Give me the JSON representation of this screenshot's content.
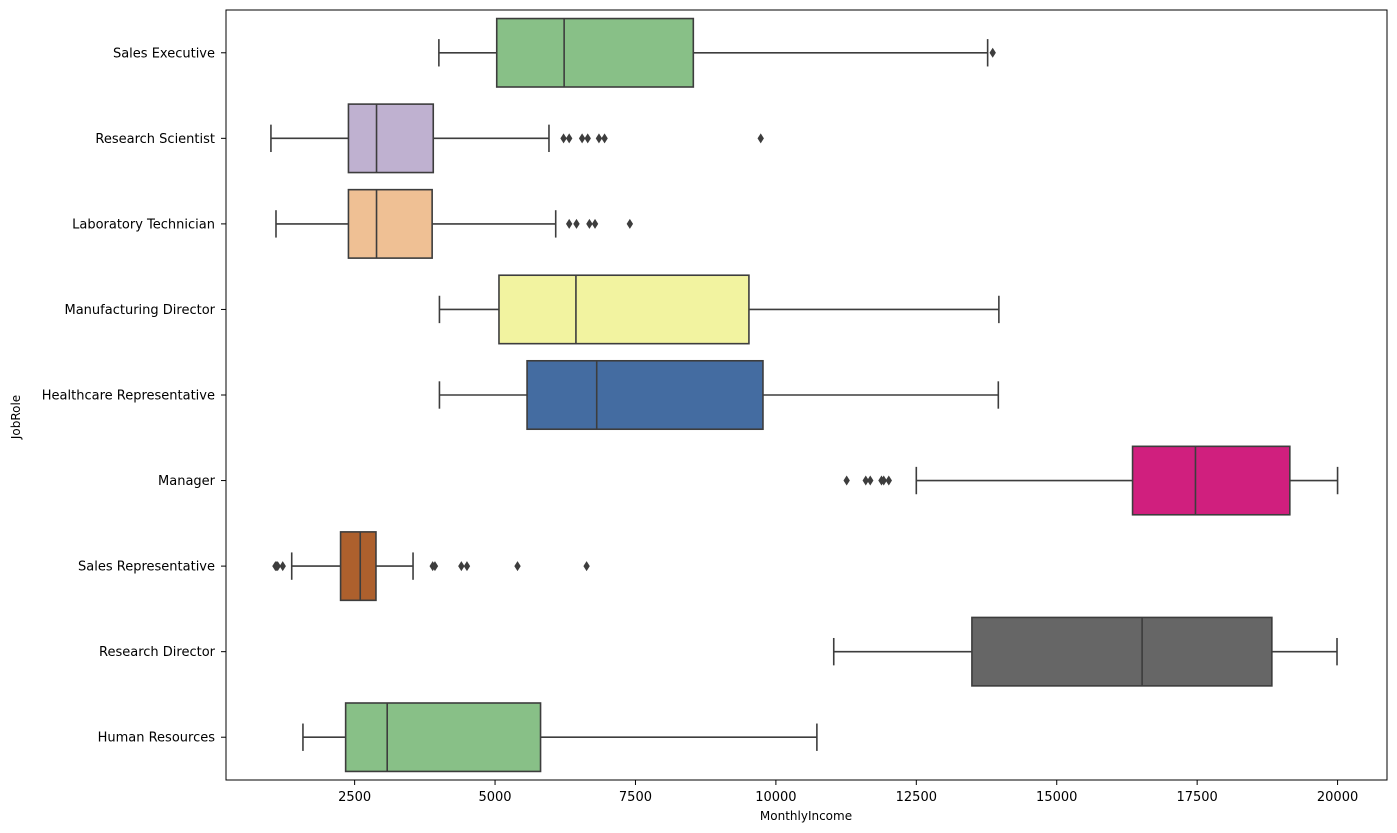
{
  "chart_data": {
    "type": "box",
    "orientation": "horizontal",
    "title": "",
    "xlabel": "MonthlyIncome",
    "ylabel": "JobRole",
    "xlim": [
      210,
      20880
    ],
    "xticks": [
      {
        "value": 2500,
        "label": "2500"
      },
      {
        "value": 5000,
        "label": "5000"
      },
      {
        "value": 7500,
        "label": "7500"
      },
      {
        "value": 10000,
        "label": "10000"
      },
      {
        "value": 12500,
        "label": "12500"
      },
      {
        "value": 15000,
        "label": "15000"
      },
      {
        "value": 17500,
        "label": "17500"
      },
      {
        "value": 20000,
        "label": "20000"
      }
    ],
    "categories": [
      "Sales Executive",
      "Research Scientist",
      "Laboratory Technician",
      "Manufacturing Director",
      "Healthcare Representative",
      "Manager",
      "Sales Representative",
      "Research Director",
      "Human Resources"
    ],
    "boxes": [
      {
        "category": "Sales Executive",
        "color": "#88c087",
        "whisker_low": 4000,
        "q1": 5030,
        "median": 6230,
        "q3": 8530,
        "whisker_high": 13770,
        "outliers": [
          13860
        ]
      },
      {
        "category": "Research Scientist",
        "color": "#bfb1d0",
        "whisker_low": 1010,
        "q1": 2390,
        "median": 2890,
        "q3": 3900,
        "whisker_high": 5960,
        "outliers": [
          6220,
          6320,
          6550,
          6650,
          6850,
          6950,
          9730
        ]
      },
      {
        "category": "Laboratory Technician",
        "color": "#efc094",
        "whisker_low": 1100,
        "q1": 2390,
        "median": 2890,
        "q3": 3880,
        "whisker_high": 6080,
        "outliers": [
          6320,
          6450,
          6680,
          6780,
          7400
        ]
      },
      {
        "category": "Manufacturing Director",
        "color": "#f2f3a0",
        "whisker_low": 4010,
        "q1": 5070,
        "median": 6440,
        "q3": 9520,
        "whisker_high": 13970,
        "outliers": []
      },
      {
        "category": "Healthcare Representative",
        "color": "#446ca1",
        "whisker_low": 4010,
        "q1": 5570,
        "median": 6810,
        "q3": 9770,
        "whisker_high": 13960,
        "outliers": []
      },
      {
        "category": "Manager",
        "color": "#d01f7e",
        "whisker_low": 12500,
        "q1": 16350,
        "median": 17470,
        "q3": 19150,
        "whisker_high": 20000,
        "outliers": [
          11260,
          11600,
          11680,
          11880,
          11920,
          12010
        ]
      },
      {
        "category": "Sales Representative",
        "color": "#ad602d",
        "whisker_low": 1380,
        "q1": 2250,
        "median": 2600,
        "q3": 2880,
        "whisker_high": 3540,
        "outliers": [
          1090,
          1110,
          1130,
          1220,
          3890,
          3930,
          4400,
          4500,
          5400,
          6630
        ]
      },
      {
        "category": "Research Director",
        "color": "#666666",
        "whisker_low": 11030,
        "q1": 13490,
        "median": 16520,
        "q3": 18830,
        "whisker_high": 19990,
        "outliers": []
      },
      {
        "category": "Human Resources",
        "color": "#88c087",
        "whisker_low": 1580,
        "q1": 2340,
        "median": 3080,
        "q3": 5810,
        "whisker_high": 10730,
        "outliers": []
      }
    ],
    "grid": false,
    "legend": "none"
  }
}
